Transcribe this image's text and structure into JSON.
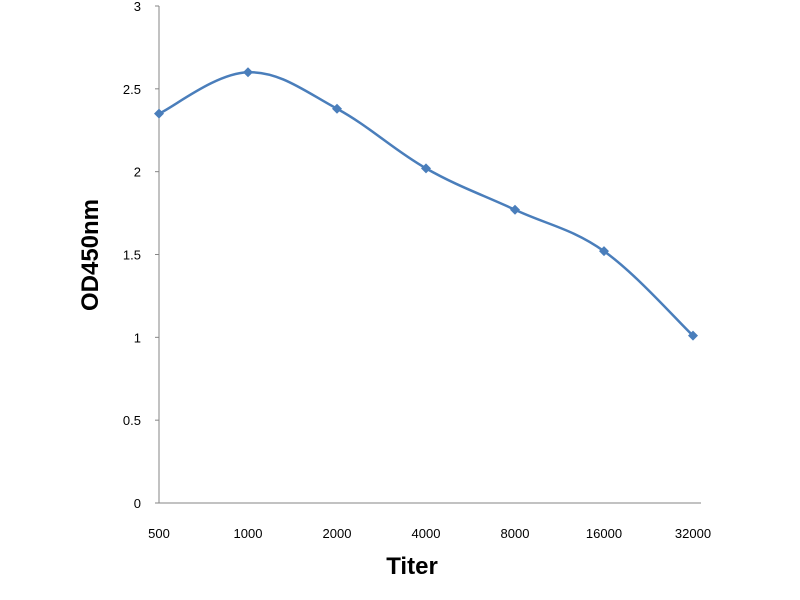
{
  "chart_data": {
    "type": "line",
    "title": "",
    "xlabel": "Titer",
    "ylabel": "OD450nm",
    "x": [
      "500",
      "1000",
      "2000",
      "4000",
      "8000",
      "16000",
      "32000"
    ],
    "series": [
      {
        "values": [
          2.35,
          2.6,
          2.38,
          2.02,
          1.77,
          1.52,
          1.01
        ]
      }
    ],
    "ylim": [
      0,
      3
    ],
    "yticks": [
      "0",
      "0.5",
      "1",
      "1.5",
      "2",
      "2.5",
      "3"
    ],
    "grid": false,
    "legend": "none",
    "line_color": "#4a7ebb",
    "marker": "diamond",
    "smooth": true
  }
}
